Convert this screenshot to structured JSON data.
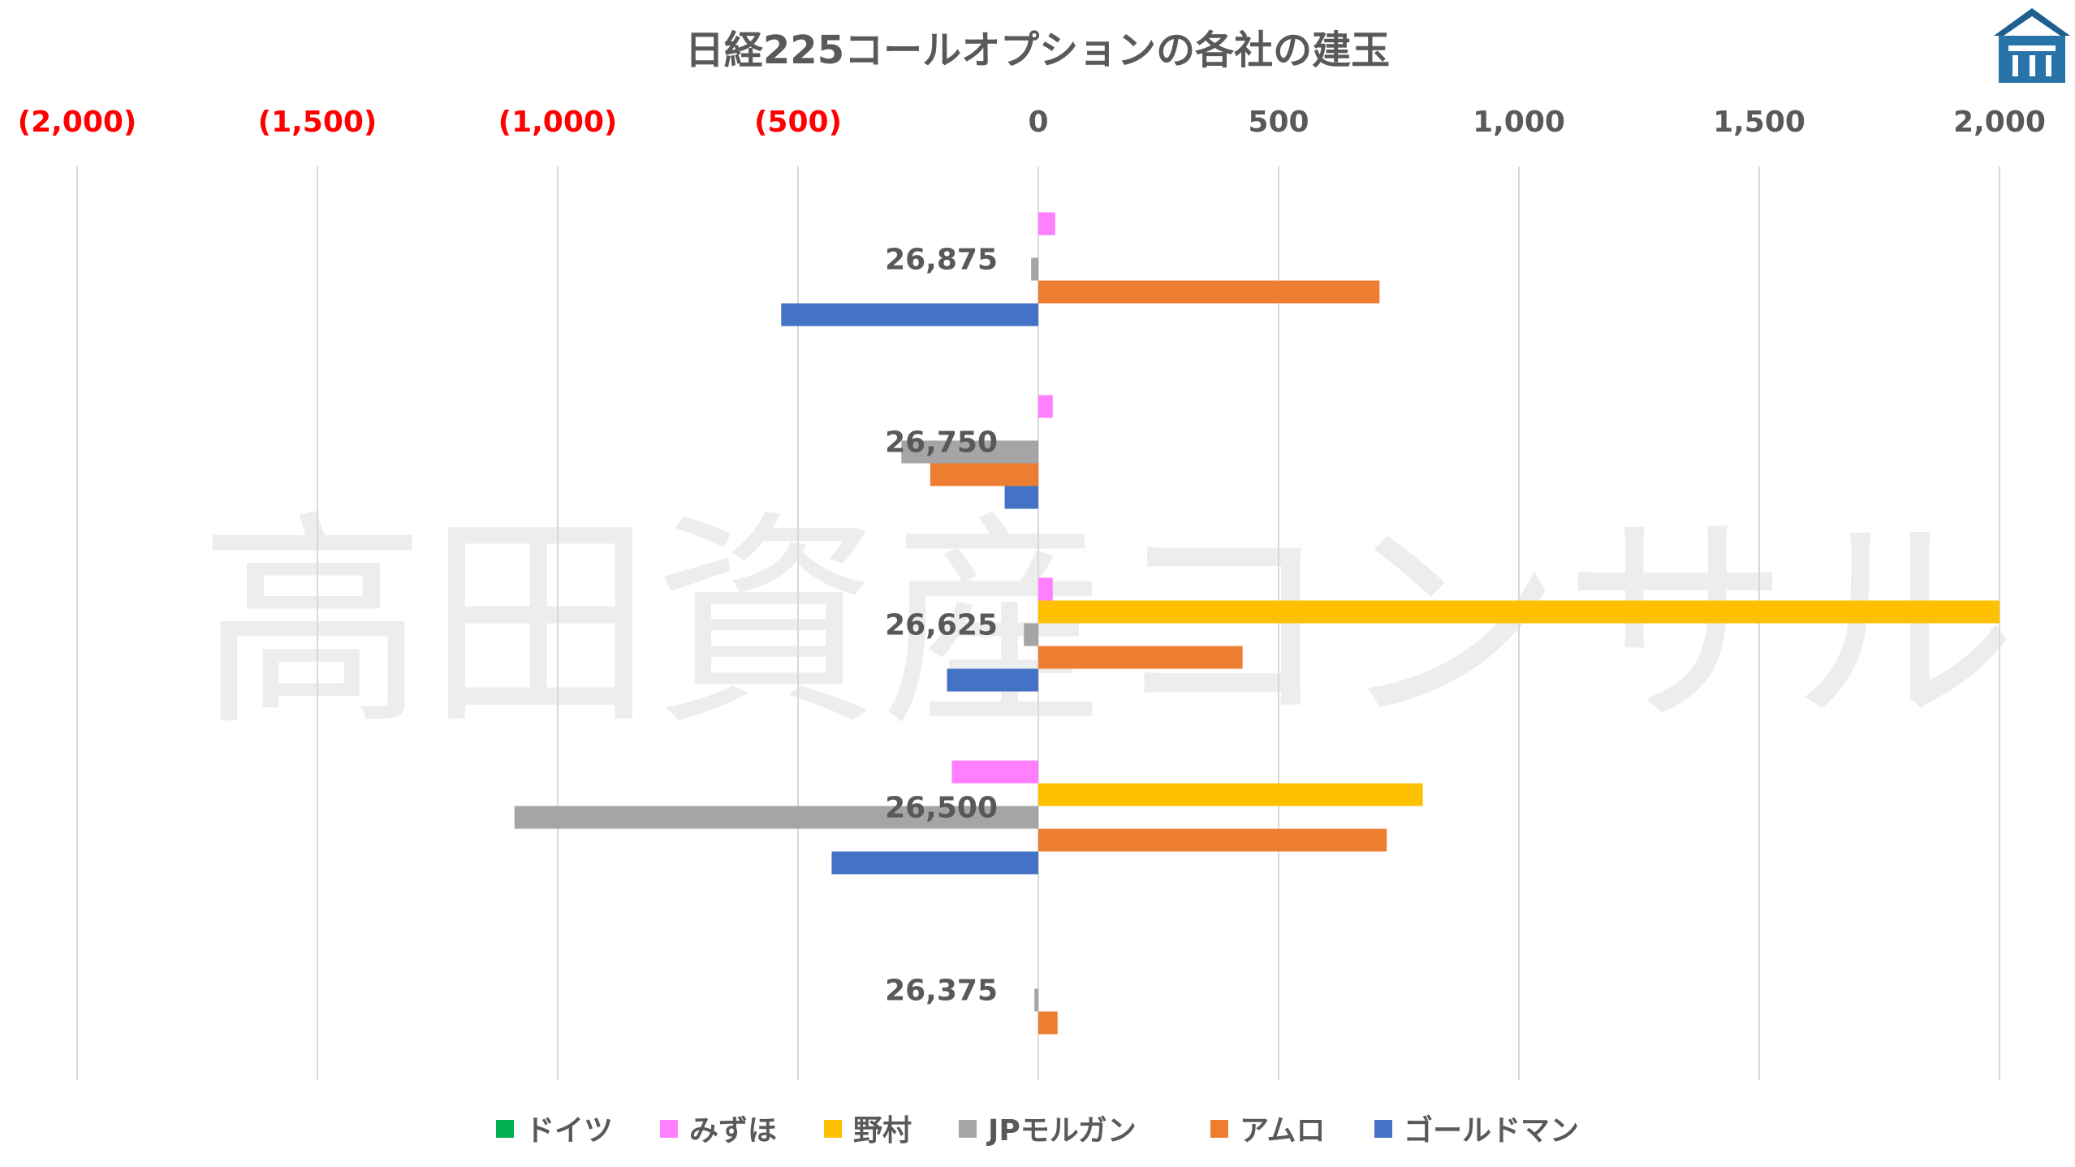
{
  "chart_data": {
    "type": "bar",
    "orientation": "horizontal",
    "title": "日経225コールオプションの各社の建玉",
    "xlim": [
      -2000,
      2000
    ],
    "x_ticks": [
      {
        "value": -2000,
        "label": "(2,000)"
      },
      {
        "value": -1500,
        "label": "(1,500)"
      },
      {
        "value": -1000,
        "label": "(1,000)"
      },
      {
        "value": -500,
        "label": "(500)"
      },
      {
        "value": 0,
        "label": "0"
      },
      {
        "value": 500,
        "label": "500"
      },
      {
        "value": 1000,
        "label": "1,000"
      },
      {
        "value": 1500,
        "label": "1,500"
      },
      {
        "value": 2000,
        "label": "2,000"
      }
    ],
    "categories": [
      "26,875",
      "26,750",
      "26,625",
      "26,500",
      "26,375"
    ],
    "series": [
      {
        "name": "ドイツ",
        "color": "#00B050",
        "values": [
          0,
          0,
          0,
          0,
          0
        ]
      },
      {
        "name": "みずほ",
        "color": "#FF80FF",
        "values": [
          35,
          30,
          30,
          -180,
          0
        ]
      },
      {
        "name": "野村",
        "color": "#FFC000",
        "values": [
          0,
          0,
          2000,
          800,
          0
        ]
      },
      {
        "name": "JPモルガン",
        "color": "#A5A5A5",
        "values": [
          -15,
          -285,
          -30,
          -1090,
          -8
        ]
      },
      {
        "name": "アムロ",
        "color": "#ED7D31",
        "values": [
          710,
          -225,
          425,
          725,
          40
        ]
      },
      {
        "name": "ゴールドマン",
        "color": "#4472C4",
        "values": [
          -535,
          -70,
          -190,
          -430,
          0
        ]
      }
    ],
    "legend_position": "bottom",
    "grid": "vertical",
    "negative_tick_color": "#FF0000",
    "positive_tick_color": "#595959"
  },
  "watermark": "高田資産コンサル"
}
